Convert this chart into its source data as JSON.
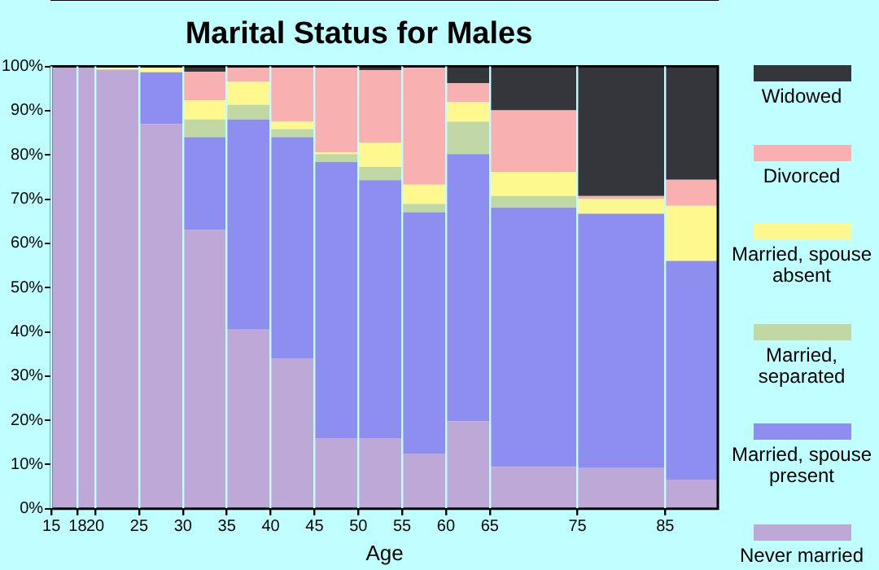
{
  "chart_data": {
    "type": "bar",
    "title": "Marital Status for Males",
    "xlabel": "Age",
    "stacked": true,
    "legend": "right",
    "grid": "x",
    "x": [
      16.5,
      19,
      22.5,
      27.5,
      32.5,
      37.5,
      42.5,
      47.5,
      52.5,
      57.5,
      62.5,
      70,
      80,
      88
    ],
    "xlim": [
      15,
      91
    ],
    "xticks": [
      15,
      18,
      20,
      25,
      30,
      35,
      40,
      45,
      50,
      55,
      60,
      65,
      75,
      85
    ],
    "ylim": [
      0,
      100
    ],
    "yticks": [
      {
        "value": 0,
        "label": "0%"
      },
      {
        "value": 10,
        "label": "10%"
      },
      {
        "value": 20,
        "label": "20%"
      },
      {
        "value": 30,
        "label": "30%"
      },
      {
        "value": 40,
        "label": "40%"
      },
      {
        "value": 50,
        "label": "50%"
      },
      {
        "value": 60,
        "label": "60%"
      },
      {
        "value": 70,
        "label": "70%"
      },
      {
        "value": 80,
        "label": "80%"
      },
      {
        "value": 90,
        "label": "90%"
      },
      {
        "value": 100,
        "label": "100%"
      }
    ],
    "series": [
      {
        "name": "Never married",
        "color": "#bea8d8",
        "values": [
          100,
          100,
          99.3,
          87,
          63,
          40.5,
          34,
          16,
          16,
          12.5,
          19.8,
          9.5,
          9.2,
          6.6
        ]
      },
      {
        "name": "Married, spouse present",
        "color": "#8e8ef0",
        "values": [
          0,
          0,
          0,
          11.7,
          21,
          47.5,
          50,
          62.4,
          58.3,
          54.5,
          60.4,
          58.6,
          57.5,
          49.4
        ]
      },
      {
        "name": "Married, separated",
        "color": "#c2d8a4",
        "values": [
          0,
          0,
          0,
          0,
          4,
          3.3,
          1.8,
          1.8,
          3,
          1.9,
          7.3,
          2.6,
          0,
          0
        ]
      },
      {
        "name": "Married, spouse absent",
        "color": "#fff88f",
        "values": [
          0,
          0,
          0.7,
          1.3,
          4.4,
          5.2,
          1.7,
          0.4,
          5.5,
          4.4,
          4.4,
          5.5,
          3.3,
          12.5
        ]
      },
      {
        "name": "Divorced",
        "color": "#f8b0b0",
        "values": [
          0,
          0,
          0,
          0,
          6.4,
          3.5,
          12.5,
          19.4,
          16.4,
          26.7,
          4.3,
          13.9,
          0.7,
          5.9
        ]
      },
      {
        "name": "Widowed",
        "color": "#35363b",
        "values": [
          0,
          0,
          0,
          0,
          1.2,
          0,
          0,
          0,
          0.8,
          0,
          3.8,
          9.9,
          29.3,
          25.6
        ]
      }
    ]
  }
}
